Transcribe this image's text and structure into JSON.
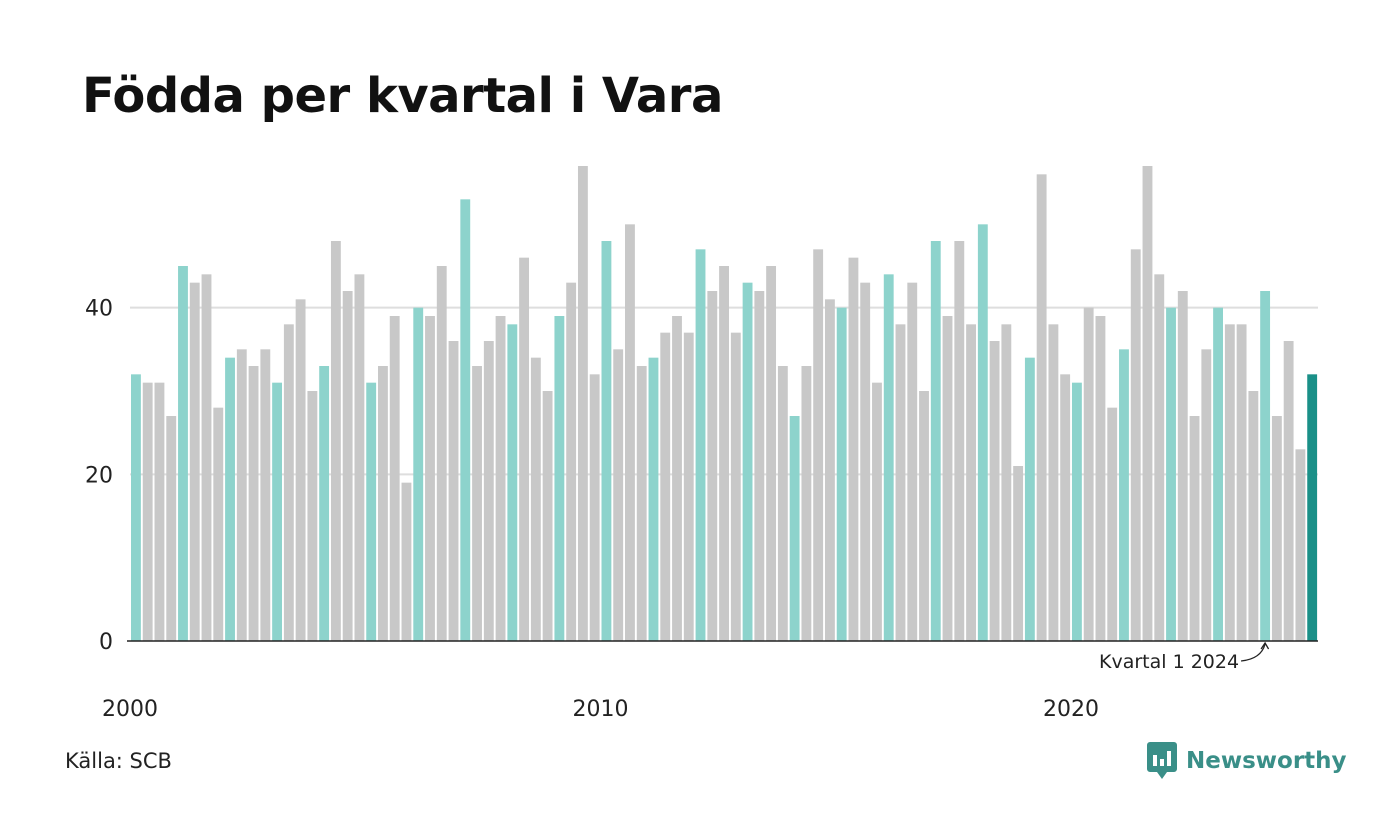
{
  "title": "Födda per kvartal i Vara",
  "source": "Källa: SCB",
  "brand": {
    "name": "Newsworthy",
    "icon": "newsworthy-logo-icon"
  },
  "colors": {
    "q1": "#8dd3cc",
    "other": "#c8c8c8",
    "latest": "#1a9088",
    "grid": "#dedede",
    "axis": "#222222",
    "brand": "#3a8f88"
  },
  "chart_data": {
    "type": "bar",
    "title": "Födda per kvartal i Vara",
    "xlabel": "",
    "ylabel": "",
    "ylim": [
      0,
      57
    ],
    "yticks": [
      0,
      20,
      40
    ],
    "grid": true,
    "xtick_labels": [
      "2000",
      "2010",
      "2020"
    ],
    "first_period": {
      "year": 2000,
      "quarter": 1
    },
    "series": [
      {
        "values": [
          32,
          31,
          31,
          27,
          45,
          43,
          44,
          28,
          34,
          35,
          33,
          35,
          31,
          38,
          41,
          30,
          33,
          48,
          42,
          44,
          31,
          33,
          39,
          19,
          40,
          39,
          45,
          36,
          53,
          33,
          36,
          39,
          38,
          46,
          34,
          30,
          39,
          43,
          57,
          32,
          48,
          35,
          50,
          33,
          34,
          37,
          39,
          37,
          47,
          42,
          45,
          37,
          43,
          42,
          45,
          33,
          27,
          33,
          47,
          41,
          40,
          46,
          43,
          31,
          44,
          38,
          43,
          30,
          48,
          39,
          48,
          38,
          50,
          36,
          38,
          21,
          34,
          56,
          38,
          32,
          31,
          40,
          39,
          28,
          35,
          47,
          57,
          44,
          40,
          42,
          27,
          35,
          40,
          38,
          38,
          30,
          42,
          27,
          36,
          23,
          32
        ]
      }
    ],
    "highlight": "first quarter of each year",
    "annotation": {
      "text": "Kvartal 1 2024",
      "year": 2024,
      "quarter": 1
    }
  }
}
